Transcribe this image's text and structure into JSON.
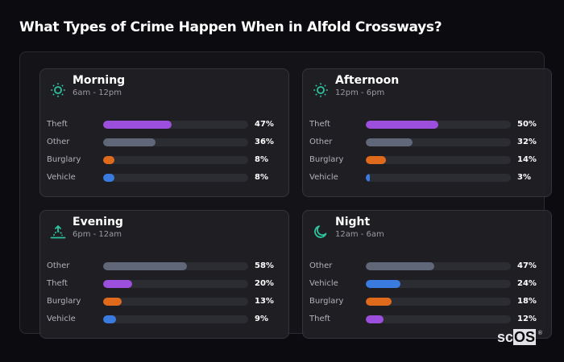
{
  "page": {
    "title": "What Types of Crime Happen When in Alfold Crossways?"
  },
  "colors": {
    "Theft": "#9b4fdc",
    "Other": "#5f6778",
    "Burglary": "#e06a1c",
    "Vehicle": "#3a7be0",
    "icon_accent": "#2ec4a0",
    "track": "#2c2c33"
  },
  "cards": [
    {
      "name": "Morning",
      "range": "6am - 12pm",
      "icon": "sun-icon",
      "rows": [
        {
          "label": "Theft",
          "value": 47,
          "display": "47%"
        },
        {
          "label": "Other",
          "value": 36,
          "display": "36%"
        },
        {
          "label": "Burglary",
          "value": 8,
          "display": "8%"
        },
        {
          "label": "Vehicle",
          "value": 8,
          "display": "8%"
        }
      ]
    },
    {
      "name": "Afternoon",
      "range": "12pm - 6pm",
      "icon": "sun-icon",
      "rows": [
        {
          "label": "Theft",
          "value": 50,
          "display": "50%"
        },
        {
          "label": "Other",
          "value": 32,
          "display": "32%"
        },
        {
          "label": "Burglary",
          "value": 14,
          "display": "14%"
        },
        {
          "label": "Vehicle",
          "value": 3,
          "display": "3%"
        }
      ]
    },
    {
      "name": "Evening",
      "range": "6pm - 12am",
      "icon": "sunset-icon",
      "rows": [
        {
          "label": "Other",
          "value": 58,
          "display": "58%"
        },
        {
          "label": "Theft",
          "value": 20,
          "display": "20%"
        },
        {
          "label": "Burglary",
          "value": 13,
          "display": "13%"
        },
        {
          "label": "Vehicle",
          "value": 9,
          "display": "9%"
        }
      ]
    },
    {
      "name": "Night",
      "range": "12am - 6am",
      "icon": "moon-icon",
      "rows": [
        {
          "label": "Other",
          "value": 47,
          "display": "47%"
        },
        {
          "label": "Vehicle",
          "value": 24,
          "display": "24%"
        },
        {
          "label": "Burglary",
          "value": 18,
          "display": "18%"
        },
        {
          "label": "Theft",
          "value": 12,
          "display": "12%"
        }
      ]
    }
  ],
  "logo": {
    "prefix": "sc",
    "suffix": "OS",
    "mark": "®"
  },
  "chart_data": {
    "type": "bar",
    "orientation": "horizontal",
    "title": "What Types of Crime Happen When in Alfold Crossways?",
    "xlabel": "",
    "ylabel": "",
    "xlim": [
      0,
      100
    ],
    "grid": false,
    "legend": "none",
    "panels": [
      {
        "title": "Morning",
        "subtitle": "6am - 12pm",
        "categories": [
          "Theft",
          "Other",
          "Burglary",
          "Vehicle"
        ],
        "values": [
          47,
          36,
          8,
          8
        ]
      },
      {
        "title": "Afternoon",
        "subtitle": "12pm - 6pm",
        "categories": [
          "Theft",
          "Other",
          "Burglary",
          "Vehicle"
        ],
        "values": [
          50,
          32,
          14,
          3
        ]
      },
      {
        "title": "Evening",
        "subtitle": "6pm - 12am",
        "categories": [
          "Other",
          "Theft",
          "Burglary",
          "Vehicle"
        ],
        "values": [
          58,
          20,
          13,
          9
        ]
      },
      {
        "title": "Night",
        "subtitle": "12am - 6am",
        "categories": [
          "Other",
          "Vehicle",
          "Burglary",
          "Theft"
        ],
        "values": [
          47,
          24,
          18,
          12
        ]
      }
    ],
    "units": "%"
  }
}
